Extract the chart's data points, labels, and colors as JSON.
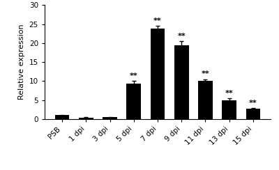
{
  "categories": [
    "PSB",
    "1 dpi",
    "3 dpi",
    "5 dpi",
    "7 dpi",
    "9 dpi",
    "11 dpi",
    "13 dpi",
    "15 dpi"
  ],
  "values": [
    1.0,
    0.4,
    0.45,
    9.4,
    23.9,
    19.4,
    10.0,
    5.0,
    2.7
  ],
  "errors": [
    0.15,
    0.08,
    0.08,
    0.7,
    0.6,
    1.1,
    0.5,
    0.4,
    0.25
  ],
  "bar_color": "#000000",
  "annotations": [
    "",
    "",
    "",
    "**",
    "**",
    "**",
    "**",
    "**",
    "**"
  ],
  "ylabel": "Relative expression",
  "ylim": [
    0,
    30
  ],
  "yticks": [
    0,
    5,
    10,
    15,
    20,
    25,
    30
  ],
  "annotation_fontsize": 8,
  "ylabel_fontsize": 8,
  "tick_fontsize": 7.5,
  "bar_width": 0.6
}
